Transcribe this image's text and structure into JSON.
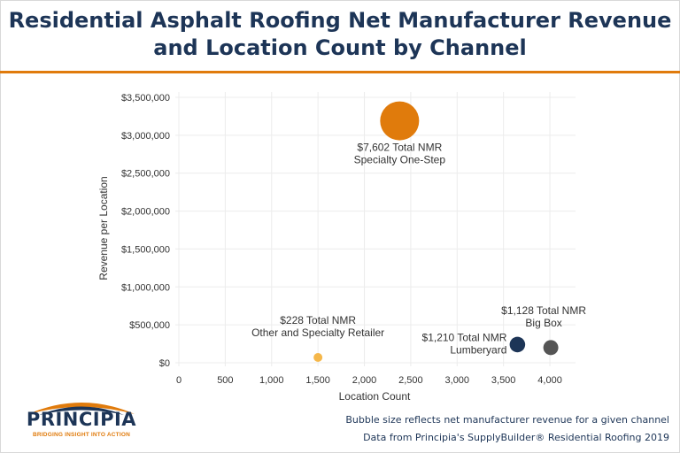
{
  "title_line1": "Residential Asphalt Roofing Net Manufacturer Revenue",
  "title_line2": "and Location Count by Channel",
  "footnotes": {
    "line1": "Bubble size reflects net manufacturer revenue for a given channel",
    "line2": "Data from Principia's SupplyBuilder® Residential Roofing 2019"
  },
  "logo": {
    "name": "PRINCIPIA",
    "tagline": "BRIDGING INSIGHT INTO ACTION",
    "colors": {
      "navy": "#1d3557",
      "orange": "#e07b0c"
    }
  },
  "chart_data": {
    "type": "scatter",
    "xlabel": "Location Count",
    "ylabel": "Revenue per Location",
    "xlim": [
      0,
      4200
    ],
    "ylim": [
      0,
      3500000
    ],
    "x_ticks": [
      0,
      500,
      1000,
      1500,
      2000,
      2500,
      3000,
      3500,
      4000
    ],
    "y_ticks": [
      0,
      500000,
      1000000,
      1500000,
      2000000,
      2500000,
      3000000,
      3500000
    ],
    "x_tick_labels": [
      "0",
      "500",
      "1,000",
      "1,500",
      "2,000",
      "2,500",
      "3,000",
      "3,500",
      "4,000"
    ],
    "y_tick_labels": [
      "$0",
      "$500,000",
      "$1,000,000",
      "$1,500,000",
      "$2,000,000",
      "$2,500,000",
      "$3,000,000",
      "$3,500,000"
    ],
    "grid": true,
    "bubble_size_metric": "Total NMR",
    "points": [
      {
        "name": "Specialty One-Step",
        "x": 2380,
        "y": 3190000,
        "nmr": 7602,
        "color": "#e07b0c",
        "label_line1": "$7,602 Total NMR",
        "label_line2": "Specialty One-Step"
      },
      {
        "name": "Other and Specialty Retailer",
        "x": 1500,
        "y": 70000,
        "nmr": 228,
        "color": "#f5b74a",
        "label_line1": "$228 Total NMR",
        "label_line2": "Other and Specialty Retailer"
      },
      {
        "name": "Lumberyard",
        "x": 3650,
        "y": 240000,
        "nmr": 1210,
        "color": "#1d3557",
        "label_line1": "$1,210 Total NMR",
        "label_line2": "Lumberyard"
      },
      {
        "name": "Big Box",
        "x": 4010,
        "y": 200000,
        "nmr": 1128,
        "color": "#555555",
        "label_line1": "$1,128 Total NMR",
        "label_line2": "Big Box"
      }
    ]
  }
}
